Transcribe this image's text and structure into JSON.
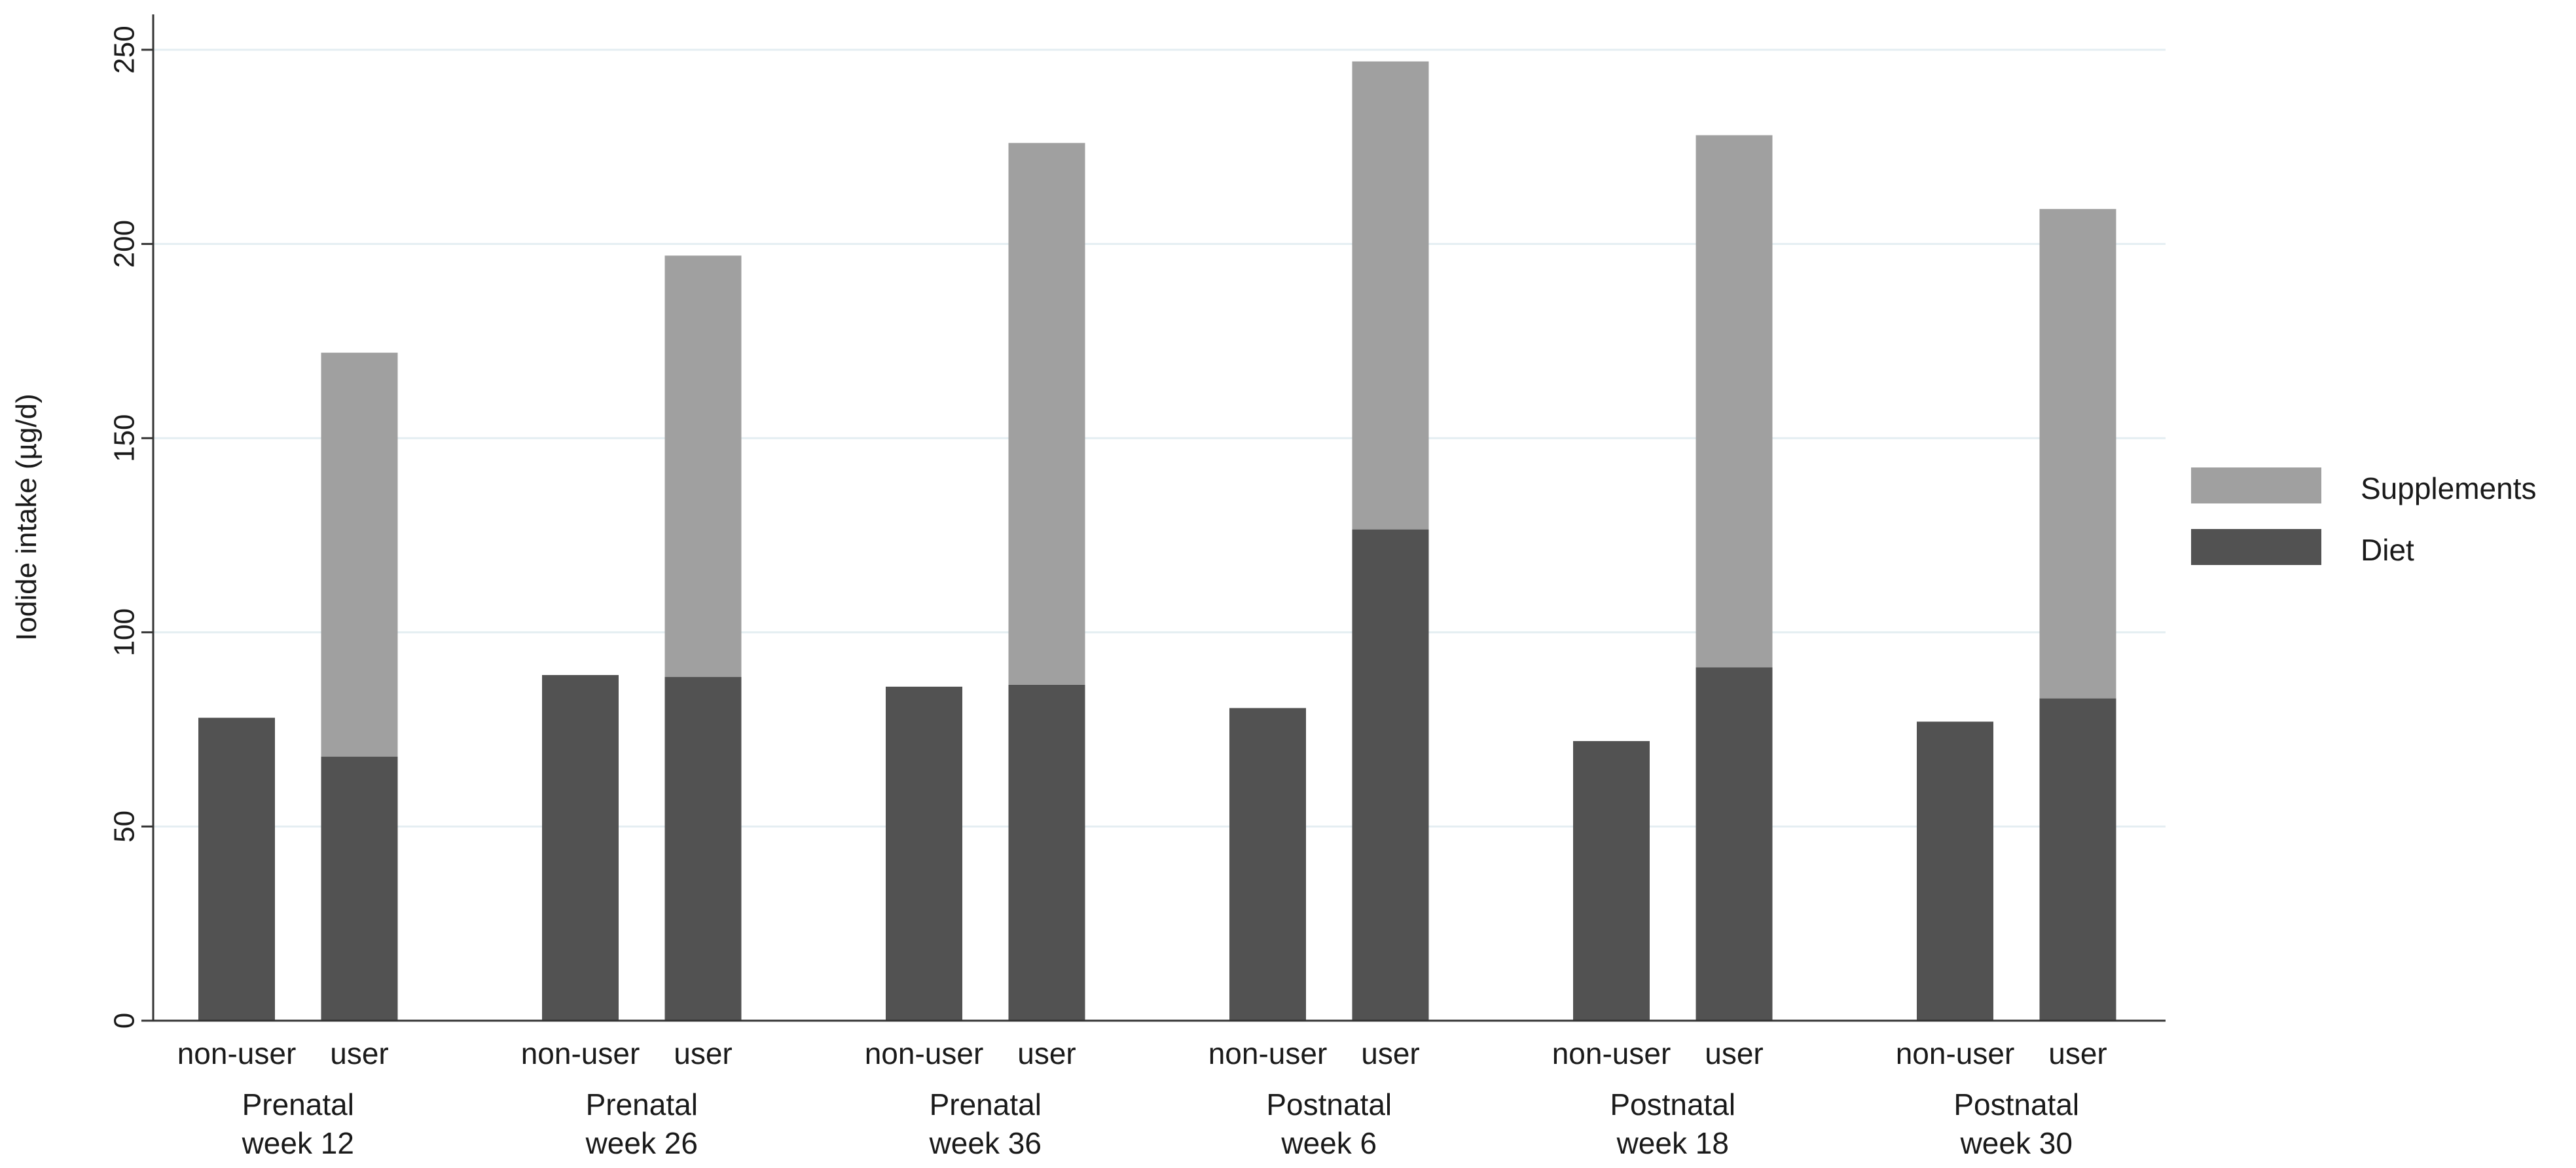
{
  "chart_data": {
    "type": "bar",
    "stacked": true,
    "ylabel": "Iodide intake (µg/d)",
    "ylim": [
      0,
      250
    ],
    "yticks": [
      0,
      50,
      100,
      150,
      200,
      250
    ],
    "grid": true,
    "legend_position": "right",
    "groups": [
      {
        "label_line1": "Prenatal",
        "label_line2": "week 12",
        "bars": [
          {
            "label": "non-user",
            "diet": 78,
            "supplements": 0
          },
          {
            "label": "user",
            "diet": 68,
            "supplements": 104
          }
        ]
      },
      {
        "label_line1": "Prenatal",
        "label_line2": "week 26",
        "bars": [
          {
            "label": "non-user",
            "diet": 89,
            "supplements": 0
          },
          {
            "label": "user",
            "diet": 88.5,
            "supplements": 108.5
          }
        ]
      },
      {
        "label_line1": "Prenatal",
        "label_line2": "week 36",
        "bars": [
          {
            "label": "non-user",
            "diet": 86,
            "supplements": 0
          },
          {
            "label": "user",
            "diet": 86.5,
            "supplements": 139.5
          }
        ]
      },
      {
        "label_line1": "Postnatal",
        "label_line2": "week 6",
        "bars": [
          {
            "label": "non-user",
            "diet": 80.5,
            "supplements": 0
          },
          {
            "label": "user",
            "diet": 126.5,
            "supplements": 120.5
          }
        ]
      },
      {
        "label_line1": "Postnatal",
        "label_line2": "week 18",
        "bars": [
          {
            "label": "non-user",
            "diet": 72,
            "supplements": 0
          },
          {
            "label": "user",
            "diet": 91,
            "supplements": 137
          }
        ]
      },
      {
        "label_line1": "Postnatal",
        "label_line2": "week 30",
        "bars": [
          {
            "label": "non-user",
            "diet": 77,
            "supplements": 0
          },
          {
            "label": "user",
            "diet": 83,
            "supplements": 126
          }
        ]
      }
    ],
    "series": [
      {
        "name": "Supplements",
        "color": "#a0a0a0"
      },
      {
        "name": "Diet",
        "color": "#525252"
      }
    ]
  }
}
